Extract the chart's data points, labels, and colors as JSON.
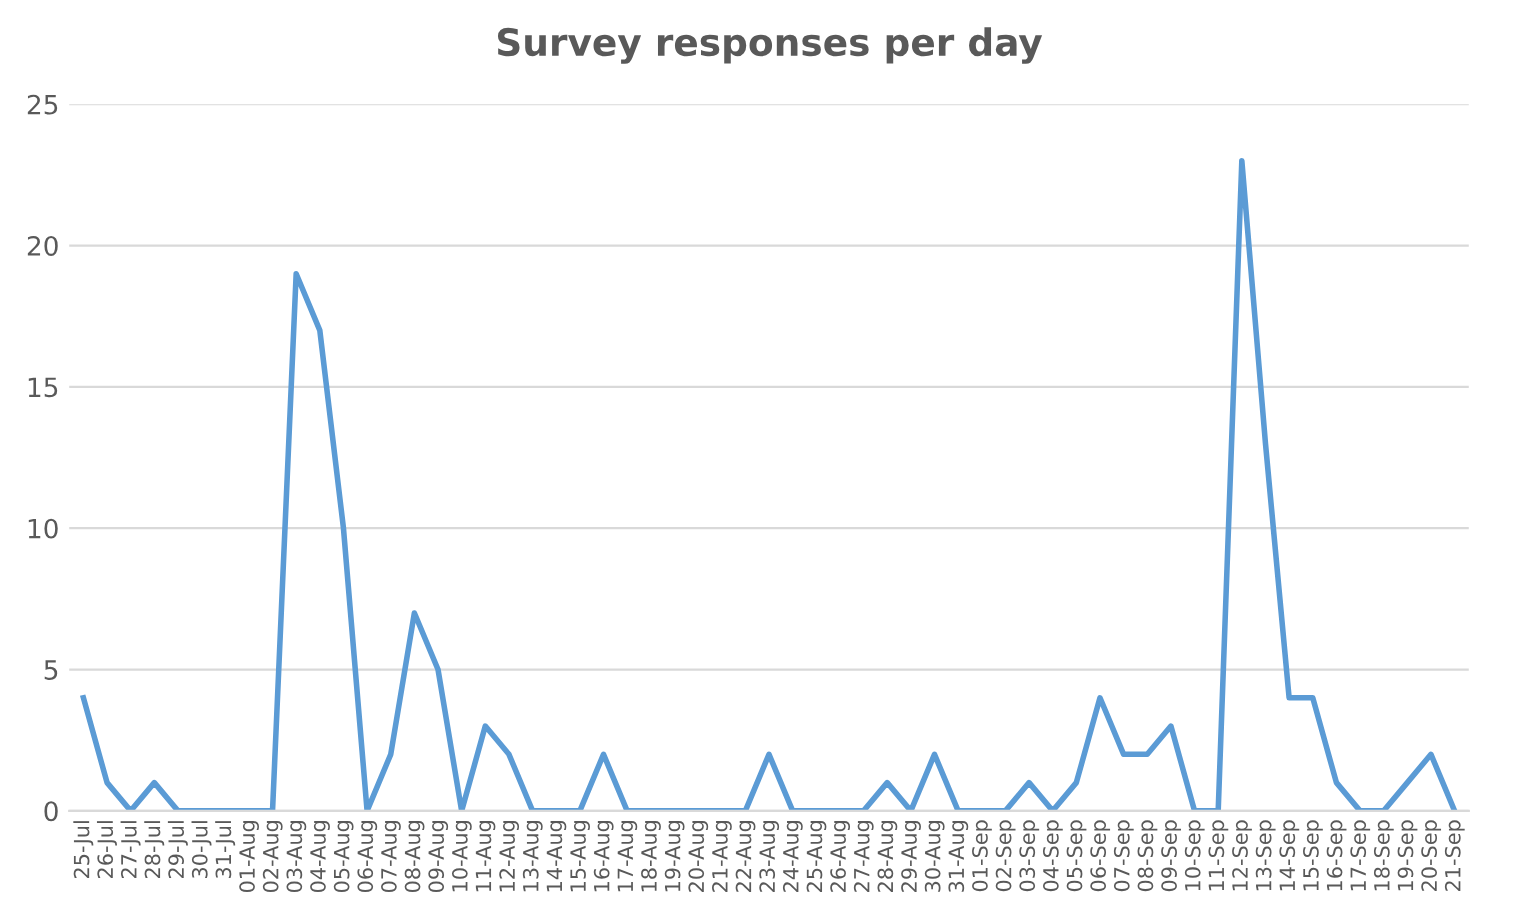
{
  "chart_data": {
    "type": "line",
    "title": "Survey responses per day",
    "categories": [
      "25-Jul",
      "26-Jul",
      "27-Jul",
      "28-Jul",
      "29-Jul",
      "30-Jul",
      "31-Jul",
      "01-Aug",
      "02-Aug",
      "03-Aug",
      "04-Aug",
      "05-Aug",
      "06-Aug",
      "07-Aug",
      "08-Aug",
      "09-Aug",
      "10-Aug",
      "11-Aug",
      "12-Aug",
      "13-Aug",
      "14-Aug",
      "15-Aug",
      "16-Aug",
      "17-Aug",
      "18-Aug",
      "19-Aug",
      "20-Aug",
      "21-Aug",
      "22-Aug",
      "23-Aug",
      "24-Aug",
      "25-Aug",
      "26-Aug",
      "27-Aug",
      "28-Aug",
      "29-Aug",
      "30-Aug",
      "31-Aug",
      "01-Sep",
      "02-Sep",
      "03-Sep",
      "04-Sep",
      "05-Sep",
      "06-Sep",
      "07-Sep",
      "08-Sep",
      "09-Sep",
      "10-Sep",
      "11-Sep",
      "12-Sep",
      "13-Sep",
      "14-Sep",
      "15-Sep",
      "16-Sep",
      "17-Sep",
      "18-Sep",
      "19-Sep",
      "20-Sep",
      "21-Sep"
    ],
    "series": [
      {
        "color": "#5b9bd5",
        "values": [
          4,
          1,
          0,
          1,
          0,
          0,
          0,
          0,
          0,
          19,
          17,
          10,
          0,
          2,
          7,
          5,
          0,
          3,
          2,
          0,
          0,
          0,
          2,
          0,
          0,
          0,
          0,
          0,
          0,
          2,
          0,
          0,
          0,
          0,
          1,
          0,
          2,
          0,
          0,
          0,
          1,
          0,
          1,
          4,
          2,
          2,
          3,
          0,
          0,
          23,
          13,
          4,
          4,
          1,
          0,
          0,
          1,
          2,
          0
        ]
      }
    ],
    "ylim": [
      0,
      25
    ],
    "yticks": [
      0,
      5,
      10,
      15,
      20,
      25
    ],
    "grid": "y",
    "marker": "none",
    "line_style": "solid"
  }
}
